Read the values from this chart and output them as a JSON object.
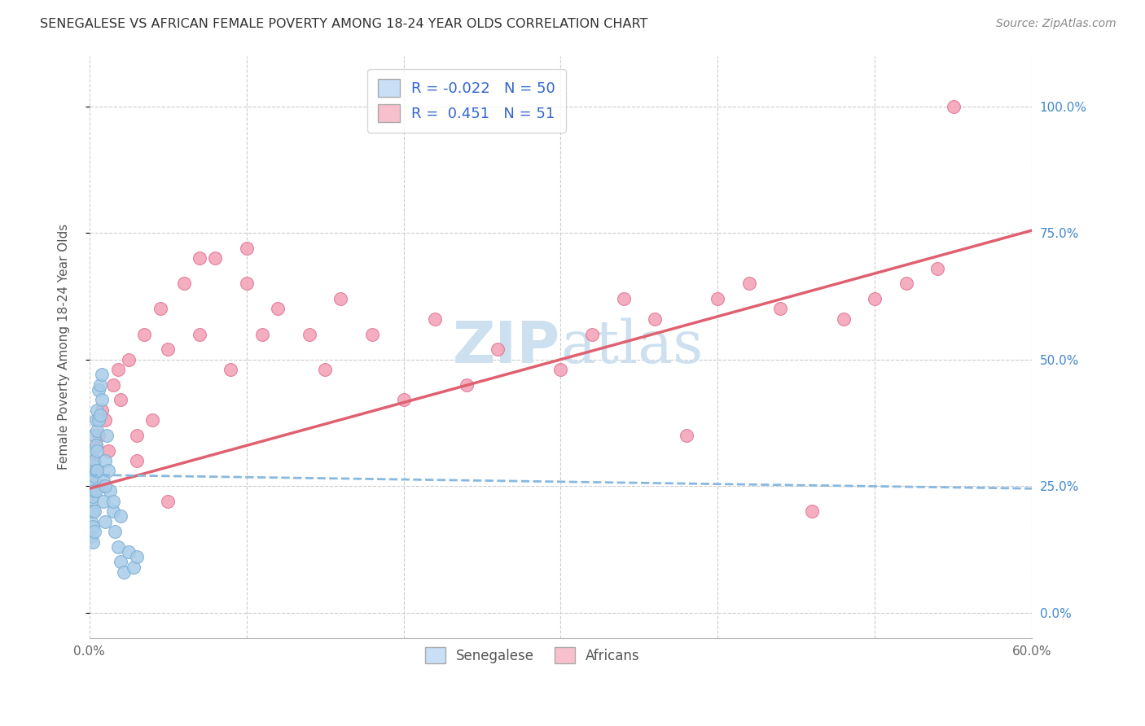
{
  "title": "SENEGALESE VS AFRICAN FEMALE POVERTY AMONG 18-24 YEAR OLDS CORRELATION CHART",
  "source": "Source: ZipAtlas.com",
  "ylabel": "Female Poverty Among 18-24 Year Olds",
  "xlim": [
    0.0,
    0.6
  ],
  "ylim": [
    -0.05,
    1.1
  ],
  "xticks": [
    0.0,
    0.1,
    0.2,
    0.3,
    0.4,
    0.5,
    0.6
  ],
  "xticklabels": [
    "0.0%",
    "",
    "",
    "",
    "",
    "",
    "60.0%"
  ],
  "ytick_positions": [
    0.0,
    0.25,
    0.5,
    0.75,
    1.0
  ],
  "ytick_labels_right": [
    "0.0%",
    "25.0%",
    "50.0%",
    "75.0%",
    "100.0%"
  ],
  "senegalese_color": "#a8cce8",
  "african_color": "#f4a0b5",
  "senegalese_edge": "#7aaed4",
  "african_edge": "#e07090",
  "trend_senegalese_color": "#88b8e0",
  "trend_african_color": "#e06070",
  "legend_box_color_sen": "#c8dff5",
  "legend_box_color_afr": "#f8c0cc",
  "R_sen": -0.022,
  "N_sen": 50,
  "R_afr": 0.451,
  "N_afr": 51,
  "watermark_color": "#cce0f0",
  "background_color": "#ffffff",
  "grid_color": "#cccccc",
  "senegalese_x": [
    0.001,
    0.001,
    0.001,
    0.001,
    0.001,
    0.002,
    0.002,
    0.002,
    0.002,
    0.002,
    0.002,
    0.002,
    0.003,
    0.003,
    0.003,
    0.003,
    0.003,
    0.003,
    0.004,
    0.004,
    0.004,
    0.004,
    0.005,
    0.005,
    0.005,
    0.006,
    0.006,
    0.007,
    0.007,
    0.008,
    0.008,
    0.009,
    0.009,
    0.01,
    0.01,
    0.011,
    0.012,
    0.013,
    0.015,
    0.016,
    0.018,
    0.02,
    0.022,
    0.025,
    0.028,
    0.03,
    0.02,
    0.015,
    0.01,
    0.005
  ],
  "senegalese_y": [
    0.28,
    0.25,
    0.22,
    0.18,
    0.15,
    0.32,
    0.29,
    0.26,
    0.23,
    0.2,
    0.17,
    0.14,
    0.35,
    0.3,
    0.27,
    0.24,
    0.2,
    0.16,
    0.38,
    0.33,
    0.28,
    0.24,
    0.4,
    0.36,
    0.32,
    0.44,
    0.38,
    0.45,
    0.39,
    0.47,
    0.42,
    0.26,
    0.22,
    0.3,
    0.18,
    0.35,
    0.28,
    0.24,
    0.2,
    0.16,
    0.13,
    0.1,
    0.08,
    0.12,
    0.09,
    0.11,
    0.19,
    0.22,
    0.25,
    0.28
  ],
  "african_x": [
    0.002,
    0.003,
    0.004,
    0.005,
    0.006,
    0.007,
    0.008,
    0.01,
    0.012,
    0.015,
    0.018,
    0.02,
    0.025,
    0.03,
    0.035,
    0.04,
    0.045,
    0.05,
    0.06,
    0.07,
    0.08,
    0.09,
    0.1,
    0.11,
    0.12,
    0.14,
    0.15,
    0.16,
    0.18,
    0.2,
    0.22,
    0.24,
    0.26,
    0.3,
    0.32,
    0.34,
    0.36,
    0.38,
    0.4,
    0.42,
    0.44,
    0.46,
    0.48,
    0.5,
    0.52,
    0.54,
    0.03,
    0.05,
    0.07,
    0.1,
    0.55
  ],
  "african_y": [
    0.3,
    0.27,
    0.33,
    0.28,
    0.35,
    0.25,
    0.4,
    0.38,
    0.32,
    0.45,
    0.48,
    0.42,
    0.5,
    0.35,
    0.55,
    0.38,
    0.6,
    0.52,
    0.65,
    0.55,
    0.7,
    0.48,
    0.65,
    0.55,
    0.6,
    0.55,
    0.48,
    0.62,
    0.55,
    0.42,
    0.58,
    0.45,
    0.52,
    0.48,
    0.55,
    0.62,
    0.58,
    0.35,
    0.62,
    0.65,
    0.6,
    0.2,
    0.58,
    0.62,
    0.65,
    0.68,
    0.3,
    0.22,
    0.7,
    0.72,
    1.0
  ],
  "afr_trend_x0": 0.0,
  "afr_trend_y0": 0.245,
  "afr_trend_x1": 0.6,
  "afr_trend_y1": 0.755,
  "sen_trend_x0": 0.0,
  "sen_trend_y0": 0.272,
  "sen_trend_x1": 0.6,
  "sen_trend_y1": 0.245
}
